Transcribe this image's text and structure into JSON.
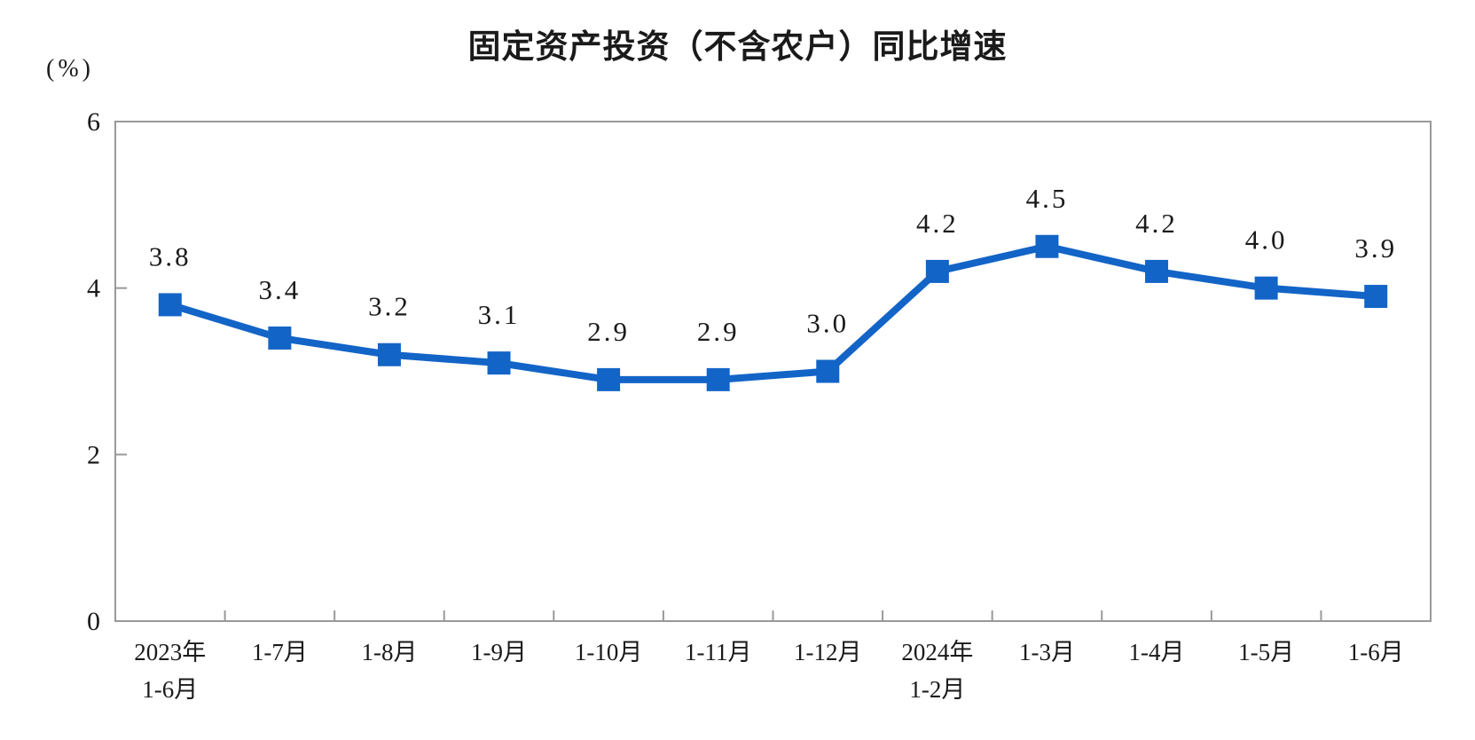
{
  "chart_data": {
    "type": "line",
    "title": "固定资产投资（不含农户）同比增速",
    "unit_label": "(%)",
    "xlabel": "",
    "ylabel": "(%)",
    "categories": [
      "2023年\n1-6月",
      "1-7月",
      "1-8月",
      "1-9月",
      "1-10月",
      "1-11月",
      "1-12月",
      "2024年\n1-2月",
      "1-3月",
      "1-4月",
      "1-5月",
      "1-6月"
    ],
    "series": [
      {
        "name": "同比增速",
        "values": [
          3.8,
          3.4,
          3.2,
          3.1,
          2.9,
          2.9,
          3.0,
          4.2,
          4.5,
          4.2,
          4.0,
          3.9
        ],
        "data_labels": [
          "3.8",
          "3.4",
          "3.2",
          "3.1",
          "2.9",
          "2.9",
          "3.0",
          "4.2",
          "4.5",
          "4.2",
          "4.0",
          "3.9"
        ]
      }
    ],
    "ylim": [
      0,
      6
    ],
    "y_ticks": [
      0,
      2,
      4,
      6
    ],
    "grid": false,
    "legend_position": "none",
    "marker": "square",
    "colors": {
      "line": "#1364C7",
      "marker": "#1364C7",
      "axis": "#999999",
      "text": "#1a1a1a"
    }
  }
}
